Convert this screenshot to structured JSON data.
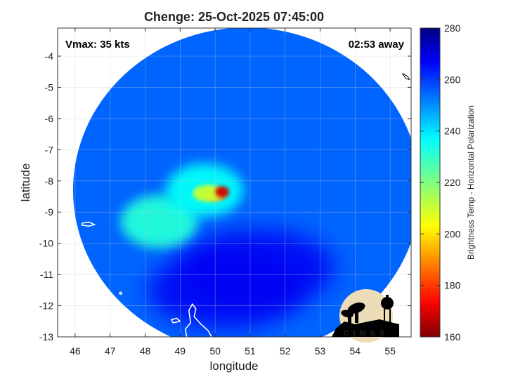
{
  "chart_data": {
    "type": "heatmap",
    "title": "Chenge: 25-Oct-2025 07:45:00",
    "xlabel": "longitude",
    "ylabel": "latitude",
    "xlim": [
      45.5,
      55.6
    ],
    "ylim": [
      -13,
      -3.1
    ],
    "xticks": [
      46,
      47,
      48,
      49,
      50,
      51,
      52,
      53,
      54,
      55
    ],
    "yticks": [
      -4,
      -5,
      -6,
      -7,
      -8,
      -9,
      -10,
      -11,
      -12,
      -13
    ],
    "grid": true,
    "annotations": {
      "top_left": "Vmax: 35 kts",
      "top_right": "02:53 away"
    },
    "colorbar": {
      "label": "Brightness Temp - Horizontal Polarization",
      "range": [
        160,
        280
      ],
      "ticks": [
        160,
        180,
        200,
        220,
        240,
        260,
        280
      ],
      "colormap": "jet"
    },
    "swath": {
      "center_lon": 50.9,
      "center_lat": -8.3,
      "background_value": 255
    },
    "features": [
      {
        "kind": "warm_core",
        "lon": 50.2,
        "lat": -8.35,
        "value": 168
      },
      {
        "kind": "warm_patch",
        "lon": 50.0,
        "lat": -8.45,
        "value": 190
      },
      {
        "kind": "warm_patch",
        "lon": 49.8,
        "lat": -8.4,
        "value": 210
      },
      {
        "kind": "rain_region",
        "lon": 48.4,
        "lat": -9.3,
        "value": 232
      },
      {
        "kind": "rain_region",
        "lon": 49.7,
        "lat": -8.3,
        "value": 236
      },
      {
        "kind": "cold_region",
        "lon": 51.2,
        "lat": -10.8,
        "value": 268
      },
      {
        "kind": "cold_region",
        "lon": 50.3,
        "lat": -11.5,
        "value": 268
      }
    ],
    "logo_text": "CIMSS"
  }
}
